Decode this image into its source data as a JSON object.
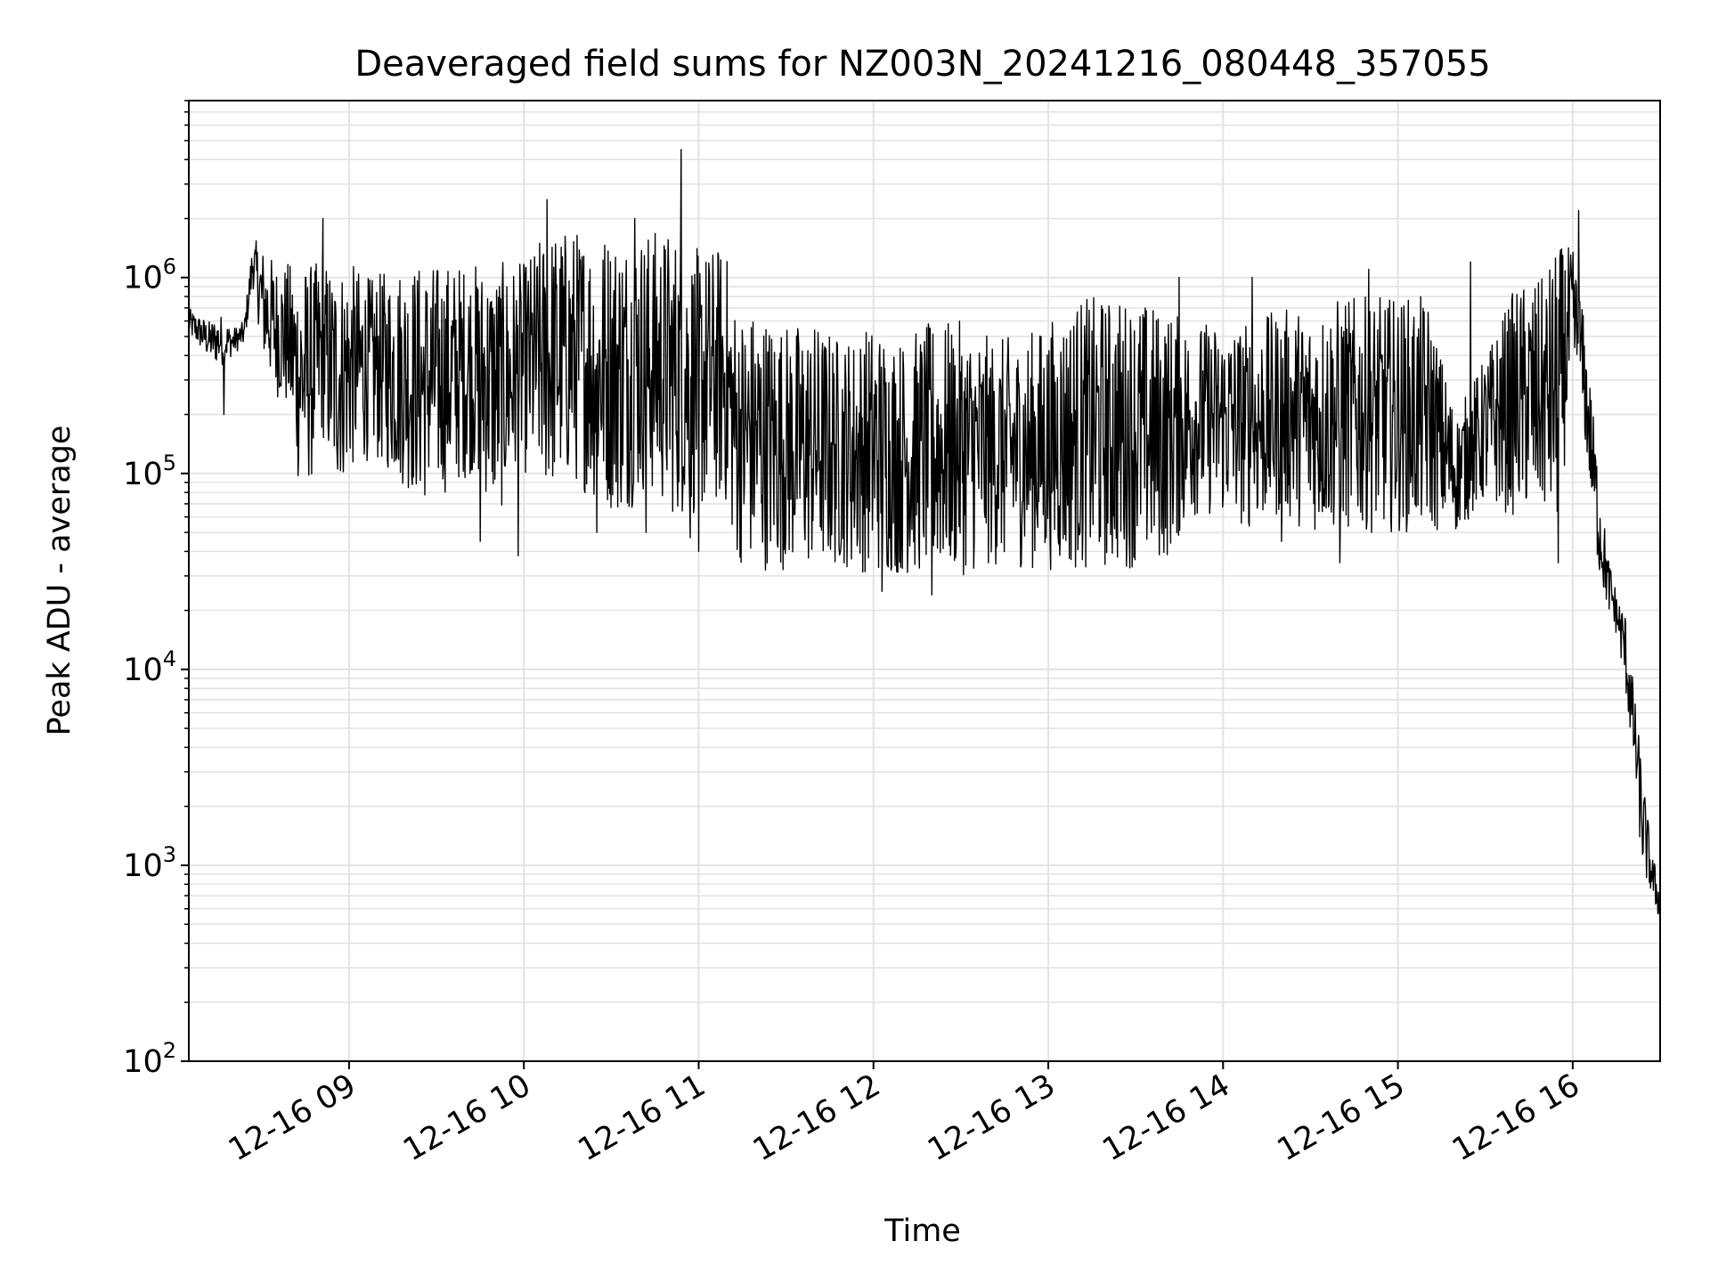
{
  "chart_data": {
    "type": "line",
    "title": "Deaveraged field sums for NZ003N_20241216_080448_357055",
    "xlabel": "Time",
    "ylabel": "Peak ADU - average",
    "y_scale": "log",
    "ylim": [
      100,
      8000000
    ],
    "xlim": [
      "2024-12-16 08:05",
      "2024-12-16 16:30"
    ],
    "grid": true,
    "line_color": "#000000",
    "grid_color": "#e3e3e3",
    "x_ticks": [
      {
        "value": "2024-12-16 09:00",
        "label": "12-16 09"
      },
      {
        "value": "2024-12-16 10:00",
        "label": "12-16 10"
      },
      {
        "value": "2024-12-16 11:00",
        "label": "12-16 11"
      },
      {
        "value": "2024-12-16 12:00",
        "label": "12-16 12"
      },
      {
        "value": "2024-12-16 13:00",
        "label": "12-16 13"
      },
      {
        "value": "2024-12-16 14:00",
        "label": "12-16 14"
      },
      {
        "value": "2024-12-16 15:00",
        "label": "12-16 15"
      },
      {
        "value": "2024-12-16 16:00",
        "label": "12-16 16"
      }
    ],
    "y_ticks": [
      {
        "value": 100,
        "base": "10",
        "exp": "2"
      },
      {
        "value": 1000,
        "base": "10",
        "exp": "3"
      },
      {
        "value": 10000,
        "base": "10",
        "exp": "4"
      },
      {
        "value": 100000,
        "base": "10",
        "exp": "5"
      },
      {
        "value": 1000000,
        "base": "10",
        "exp": "6"
      }
    ],
    "series": [
      {
        "x": [
          "2024-12-16 08:05",
          "2024-12-16 08:08",
          "2024-12-16 08:12",
          "2024-12-16 08:16",
          "2024-12-16 08:20",
          "2024-12-16 08:24",
          "2024-12-16 08:27",
          "2024-12-16 08:31",
          "2024-12-16 08:35",
          "2024-12-16 08:39",
          "2024-12-16 08:43",
          "2024-12-16 08:47",
          "2024-12-16 08:51",
          "2024-12-16 08:55",
          "2024-12-16 09:00",
          "2024-12-16 09:08",
          "2024-12-16 09:17",
          "2024-12-16 09:25",
          "2024-12-16 09:34",
          "2024-12-16 09:42",
          "2024-12-16 09:51",
          "2024-12-16 10:00",
          "2024-12-16 10:08",
          "2024-12-16 10:17",
          "2024-12-16 10:25",
          "2024-12-16 10:34",
          "2024-12-16 10:42",
          "2024-12-16 10:51",
          "2024-12-16 11:00",
          "2024-12-16 11:09",
          "2024-12-16 11:13",
          "2024-12-16 11:20",
          "2024-12-16 11:30",
          "2024-12-16 11:40",
          "2024-12-16 11:50",
          "2024-12-16 12:00",
          "2024-12-16 12:10",
          "2024-12-16 12:20",
          "2024-12-16 12:30",
          "2024-12-16 12:40",
          "2024-12-16 12:50",
          "2024-12-16 13:00",
          "2024-12-16 13:10",
          "2024-12-16 13:20",
          "2024-12-16 13:30",
          "2024-12-16 13:40",
          "2024-12-16 13:50",
          "2024-12-16 14:00",
          "2024-12-16 14:10",
          "2024-12-16 14:20",
          "2024-12-16 14:30",
          "2024-12-16 14:40",
          "2024-12-16 14:50",
          "2024-12-16 15:00",
          "2024-12-16 15:10",
          "2024-12-16 15:20",
          "2024-12-16 15:30",
          "2024-12-16 15:40",
          "2024-12-16 15:50",
          "2024-12-16 15:55",
          "2024-12-16 16:00",
          "2024-12-16 16:03",
          "2024-12-16 16:06",
          "2024-12-16 16:09",
          "2024-12-16 16:12",
          "2024-12-16 16:15",
          "2024-12-16 16:18",
          "2024-12-16 16:21",
          "2024-12-16 16:24",
          "2024-12-16 16:27",
          "2024-12-16 16:30"
        ],
        "low": [
          500000,
          450000,
          380000,
          350000,
          400000,
          450000,
          900000,
          350000,
          250000,
          200000,
          80000,
          90000,
          150000,
          80000,
          100000,
          120000,
          90000,
          70000,
          80000,
          100000,
          60000,
          100000,
          80000,
          90000,
          70000,
          60000,
          80000,
          60000,
          60000,
          70000,
          35000,
          32000,
          32000,
          32000,
          33000,
          30000,
          30000,
          30000,
          30000,
          33000,
          33000,
          32000,
          32000,
          32000,
          33000,
          35000,
          60000,
          60000,
          50000,
          60000,
          50000,
          50000,
          50000,
          50000,
          50000,
          50000,
          70000,
          60000,
          60000,
          50000,
          300000,
          200000,
          80000,
          30000,
          20000,
          15000,
          8000,
          3000,
          900,
          700,
          500
        ],
        "high": [
          700000,
          650000,
          600000,
          650000,
          550000,
          600000,
          1600000,
          1400000,
          1200000,
          1200000,
          1200000,
          1200000,
          1200000,
          1200000,
          1200000,
          1000000,
          1200000,
          1200000,
          1200000,
          1200000,
          1200000,
          1200000,
          1800000,
          1800000,
          1800000,
          1800000,
          1800000,
          1800000,
          1400000,
          1500000,
          700000,
          700000,
          600000,
          600000,
          500000,
          600000,
          500000,
          600000,
          600000,
          500000,
          500000,
          600000,
          800000,
          800000,
          800000,
          700000,
          600000,
          600000,
          600000,
          700000,
          700000,
          800000,
          800000,
          800000,
          800000,
          200000,
          400000,
          900000,
          1000000,
          1500000,
          1400000,
          800000,
          300000,
          100000,
          40000,
          25000,
          20000,
          8000,
          3000,
          1200,
          800
        ]
      }
    ],
    "spikes": [
      {
        "x": "2024-12-16 08:17",
        "y": 200000
      },
      {
        "x": "2024-12-16 08:51",
        "y": 2000000
      },
      {
        "x": "2024-12-16 09:45",
        "y": 45000
      },
      {
        "x": "2024-12-16 09:58",
        "y": 38000
      },
      {
        "x": "2024-12-16 10:08",
        "y": 2500000
      },
      {
        "x": "2024-12-16 10:25",
        "y": 50000
      },
      {
        "x": "2024-12-16 10:38",
        "y": 2000000
      },
      {
        "x": "2024-12-16 10:42",
        "y": 50000
      },
      {
        "x": "2024-12-16 10:54",
        "y": 4500000
      },
      {
        "x": "2024-12-16 10:57",
        "y": 47000
      },
      {
        "x": "2024-12-16 11:00",
        "y": 40000
      },
      {
        "x": "2024-12-16 12:03",
        "y": 25000
      },
      {
        "x": "2024-12-16 12:20",
        "y": 24000
      },
      {
        "x": "2024-12-16 13:45",
        "y": 1000000
      },
      {
        "x": "2024-12-16 14:10",
        "y": 1000000
      },
      {
        "x": "2024-12-16 14:20",
        "y": 45000
      },
      {
        "x": "2024-12-16 14:40",
        "y": 35000
      },
      {
        "x": "2024-12-16 14:50",
        "y": 1100000
      },
      {
        "x": "2024-12-16 15:25",
        "y": 1200000
      },
      {
        "x": "2024-12-16 15:55",
        "y": 35000
      },
      {
        "x": "2024-12-16 16:02",
        "y": 2200000
      }
    ]
  }
}
